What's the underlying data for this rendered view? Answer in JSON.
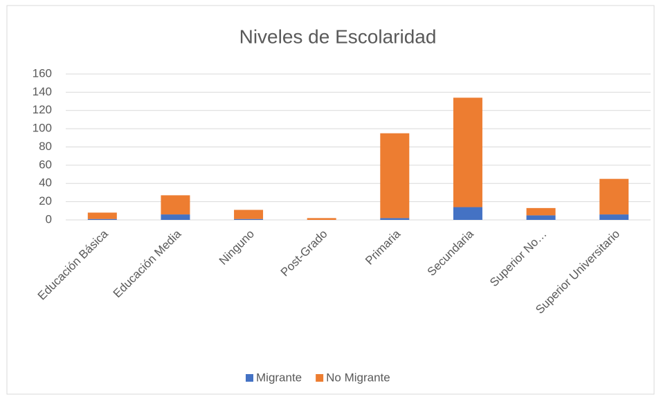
{
  "chart_data": {
    "type": "stacked_bar",
    "title": "Niveles de Escolaridad",
    "categories": [
      "Educación Básica",
      "Educación Media",
      "Ninguno",
      "Post-Grado",
      "Primaria",
      "Secundaria",
      "Superior No…",
      "Superior Universitario"
    ],
    "series": [
      {
        "name": "Migrante",
        "color": "#4472c4",
        "values": [
          1,
          6,
          1,
          0,
          2,
          14,
          5,
          6
        ]
      },
      {
        "name": "No Migrante",
        "color": "#ed7d31",
        "values": [
          7,
          21,
          10,
          2,
          93,
          120,
          8,
          39
        ]
      }
    ],
    "ylim": [
      0,
      160
    ],
    "yticks": [
      0,
      20,
      40,
      60,
      80,
      100,
      120,
      140,
      160
    ],
    "grid": true,
    "legend": "bottom"
  }
}
